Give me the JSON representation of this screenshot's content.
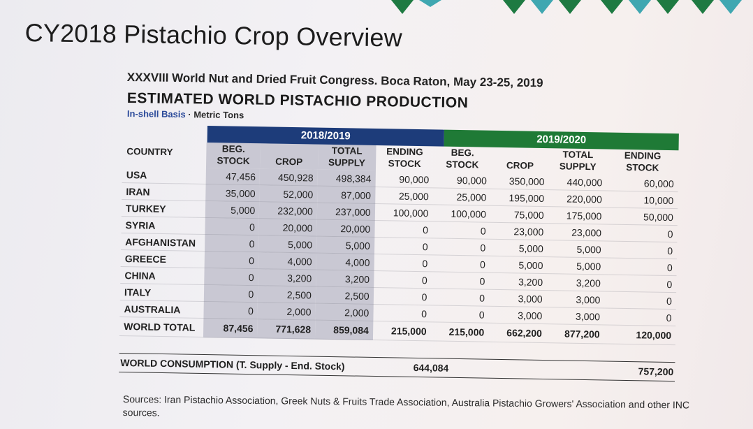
{
  "title": "CY2018 Pistachio Crop Overview",
  "subtitle": "XXXVIII World Nut and Dried Fruit Congress. Boca Raton, May 23-25, 2019",
  "heading": "ESTIMATED WORLD PISTACHIO PRODUCTION",
  "basis_prefix": "In-shell Basis",
  "basis_sep": " · ",
  "basis_suffix": "Metric Tons",
  "table": {
    "year_a": "2018/2019",
    "year_b": "2019/2020",
    "country_header": "COUNTRY",
    "columns": [
      [
        "BEG.",
        "STOCK"
      ],
      [
        "",
        "CROP"
      ],
      [
        "TOTAL",
        "SUPPLY"
      ],
      [
        "ENDING",
        "STOCK"
      ],
      [
        "BEG.",
        "STOCK"
      ],
      [
        "",
        "CROP"
      ],
      [
        "TOTAL",
        "SUPPLY"
      ],
      [
        "ENDING",
        "STOCK"
      ]
    ],
    "rows": [
      {
        "country": "USA",
        "values": [
          "47,456",
          "450,928",
          "498,384",
          "90,000",
          "90,000",
          "350,000",
          "440,000",
          "60,000"
        ]
      },
      {
        "country": "IRAN",
        "values": [
          "35,000",
          "52,000",
          "87,000",
          "25,000",
          "25,000",
          "195,000",
          "220,000",
          "10,000"
        ]
      },
      {
        "country": "TURKEY",
        "values": [
          "5,000",
          "232,000",
          "237,000",
          "100,000",
          "100,000",
          "75,000",
          "175,000",
          "50,000"
        ]
      },
      {
        "country": "SYRIA",
        "values": [
          "0",
          "20,000",
          "20,000",
          "0",
          "0",
          "23,000",
          "23,000",
          "0"
        ]
      },
      {
        "country": "AFGHANISTAN",
        "values": [
          "0",
          "5,000",
          "5,000",
          "0",
          "0",
          "5,000",
          "5,000",
          "0"
        ]
      },
      {
        "country": "GREECE",
        "values": [
          "0",
          "4,000",
          "4,000",
          "0",
          "0",
          "5,000",
          "5,000",
          "0"
        ]
      },
      {
        "country": "CHINA",
        "values": [
          "0",
          "3,200",
          "3,200",
          "0",
          "0",
          "3,200",
          "3,200",
          "0"
        ]
      },
      {
        "country": "ITALY",
        "values": [
          "0",
          "2,500",
          "2,500",
          "0",
          "0",
          "3,000",
          "3,000",
          "0"
        ]
      },
      {
        "country": "AUSTRALIA",
        "values": [
          "0",
          "2,000",
          "2,000",
          "0",
          "0",
          "3,000",
          "3,000",
          "0"
        ]
      }
    ],
    "total": {
      "country": "WORLD TOTAL",
      "values": [
        "87,456",
        "771,628",
        "859,084",
        "215,000",
        "215,000",
        "662,200",
        "877,200",
        "120,000"
      ]
    }
  },
  "consumption": {
    "label": "WORLD CONSUMPTION (T. Supply - End. Stock)",
    "value_a": "644,084",
    "value_b": "757,200"
  },
  "sources": "Sources: Iran Pistachio Association, Greek Nuts & Fruits Trade Association, Australia Pistachio Growers' Association and other INC sources.",
  "colors": {
    "band_2018": "#1d3c7a",
    "band_2019": "#1f7a36",
    "shade": "#c9c8d3"
  }
}
